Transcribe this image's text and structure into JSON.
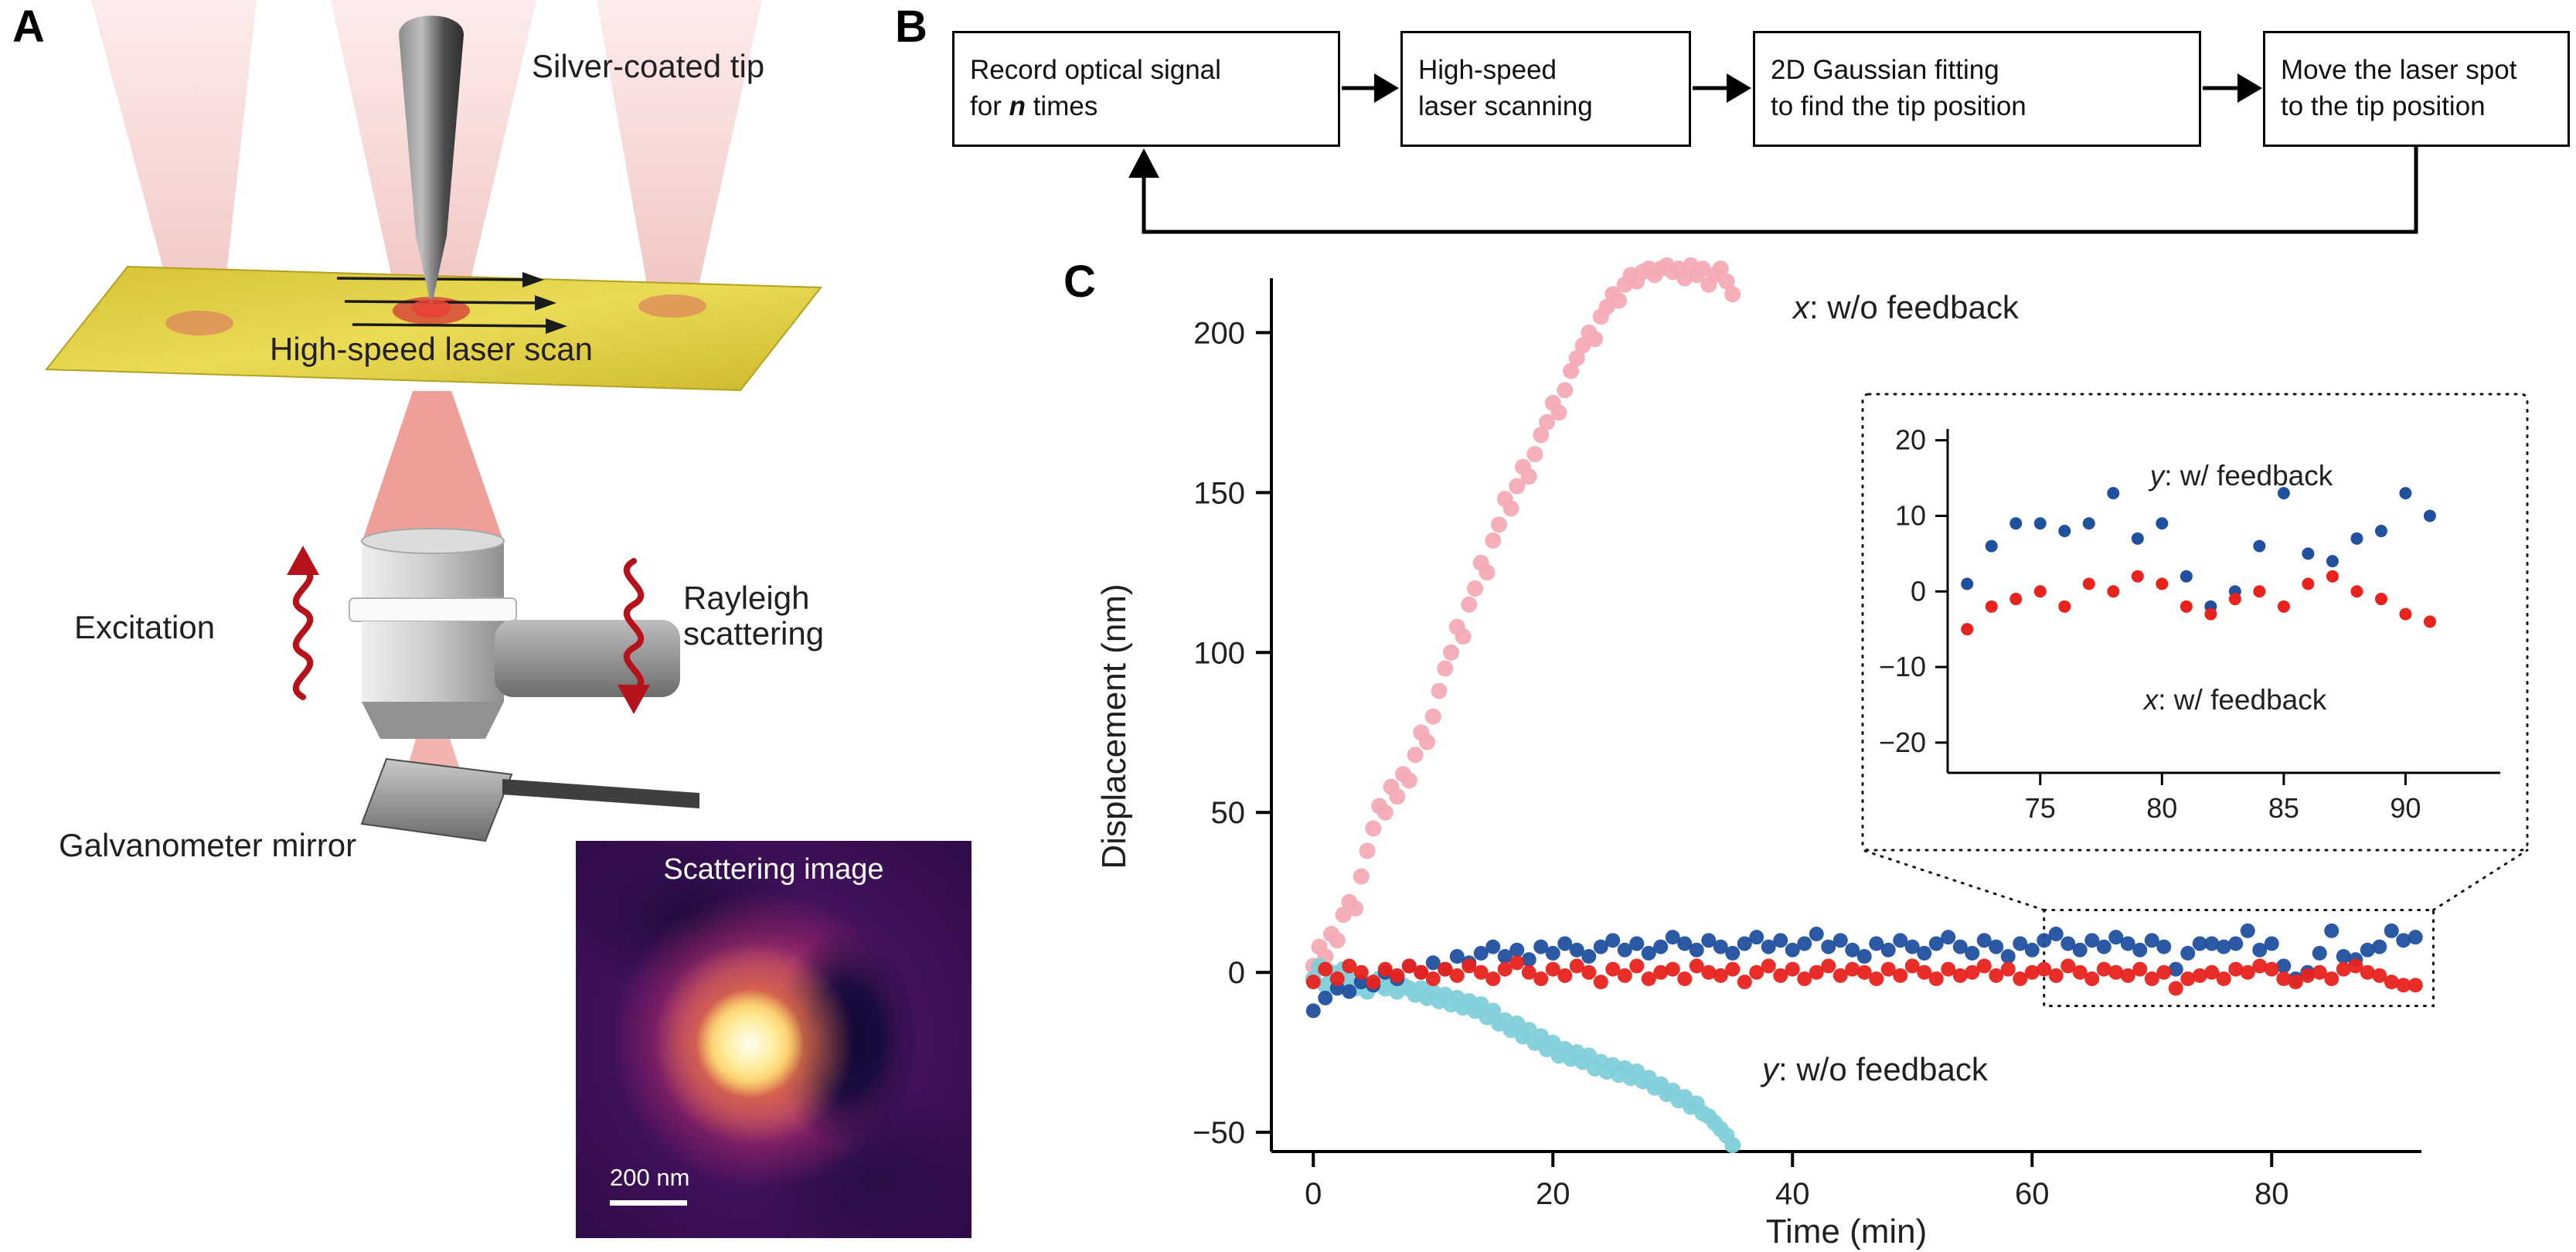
{
  "panels": {
    "a": "A",
    "b": "B",
    "c": "C"
  },
  "panel_a": {
    "tip_label": "Silver-coated tip",
    "scan_label": "High-speed laser scan",
    "excitation_label": "Excitation",
    "rayleigh_line1": "Rayleigh",
    "rayleigh_line2": "scattering",
    "galvo_label": "Galvanometer mirror",
    "scattering_title": "Scattering image",
    "scalebar_label": "200 nm"
  },
  "flowchart": {
    "steps": [
      {
        "line1": "Record optical signal",
        "line2_pre": "for ",
        "line2_emph": "n",
        "line2_post": " times"
      },
      {
        "label": "High-speed\nlaser scanning"
      },
      {
        "label": "2D Gaussian fitting\nto find the tip position"
      },
      {
        "label": "Move the laser spot\nto the tip position"
      }
    ]
  },
  "chart_data": {
    "type": "scatter",
    "xlabel": "Time (min)",
    "ylabel": "Displacement (nm)",
    "xlim": [
      -3.5,
      92.5
    ],
    "ylim": [
      -56,
      217
    ],
    "x_ticks": [
      0,
      20,
      40,
      60,
      80
    ],
    "y_ticks": [
      200,
      150,
      100,
      50,
      0,
      -50
    ],
    "grid": false,
    "labels": {
      "x_wo": {
        "var": "x",
        "rest": ": w/o feedback"
      },
      "y_wo": {
        "var": "y",
        "rest": ": w/o feedback"
      },
      "y_w": {
        "var": "y",
        "rest": ": w/ feedback"
      },
      "x_w": {
        "var": "x",
        "rest": ": w/ feedback"
      }
    },
    "zoom_rect": {
      "t_min": 61,
      "t_max": 93.5,
      "v_min": -10.5,
      "v_max": 19.5
    },
    "inset": {
      "xlim": [
        71.2,
        95
      ],
      "ylim": [
        -24,
        21.5
      ],
      "x_ticks": [
        75,
        80,
        85,
        90
      ],
      "y_ticks": [
        20,
        10,
        0,
        -10,
        -20
      ],
      "t_range": [
        72,
        91
      ],
      "series_shown": [
        "x: w/ feedback",
        "y: w/ feedback"
      ]
    },
    "series": [
      {
        "name": "x: w/o feedback",
        "color": "#f4abb4",
        "t_start": 0,
        "t_step": 0.5,
        "values": [
          2,
          8,
          5,
          12,
          10,
          18,
          22,
          20,
          30,
          38,
          45,
          52,
          50,
          58,
          55,
          62,
          60,
          68,
          75,
          72,
          80,
          88,
          95,
          100,
          108,
          105,
          115,
          120,
          128,
          125,
          135,
          140,
          148,
          145,
          152,
          158,
          155,
          162,
          168,
          172,
          178,
          175,
          182,
          188,
          192,
          196,
          200,
          198,
          205,
          208,
          212,
          210,
          215,
          218,
          216,
          219,
          220,
          218,
          220,
          221,
          219,
          220,
          217,
          221,
          218,
          220,
          215,
          218,
          220,
          216,
          212
        ]
      },
      {
        "name": "y: w/o feedback",
        "color": "#7fcfda",
        "t_start": 0,
        "t_step": 0.5,
        "values": [
          -2,
          2,
          -4,
          0,
          -3,
          1,
          -2,
          -5,
          -3,
          -6,
          -4,
          -2,
          -5,
          -3,
          -6,
          -4,
          -5,
          -7,
          -5,
          -8,
          -6,
          -9,
          -7,
          -10,
          -8,
          -11,
          -9,
          -12,
          -10,
          -14,
          -12,
          -16,
          -15,
          -18,
          -16,
          -20,
          -18,
          -22,
          -20,
          -24,
          -22,
          -26,
          -24,
          -27,
          -25,
          -28,
          -26,
          -30,
          -28,
          -31,
          -29,
          -32,
          -30,
          -33,
          -31,
          -34,
          -33,
          -36,
          -35,
          -38,
          -37,
          -40,
          -39,
          -42,
          -41,
          -44,
          -45,
          -47,
          -49,
          -51,
          -54
        ]
      },
      {
        "name": "y: w/ feedback",
        "color": "#20509e",
        "t_start": 0,
        "t_step": 1,
        "values": [
          -12,
          -8,
          -5,
          -6,
          -3,
          -4,
          0,
          -2,
          2,
          0,
          3,
          1,
          5,
          3,
          6,
          8,
          5,
          7,
          4,
          8,
          6,
          9,
          7,
          5,
          8,
          10,
          7,
          9,
          6,
          8,
          11,
          9,
          7,
          10,
          8,
          6,
          9,
          11,
          8,
          10,
          7,
          9,
          12,
          8,
          10,
          7,
          5,
          9,
          7,
          10,
          8,
          6,
          9,
          11,
          8,
          6,
          10,
          8,
          5,
          9,
          7,
          10,
          12,
          9,
          7,
          10,
          8,
          11,
          9,
          7,
          10,
          8,
          1,
          6,
          9,
          9,
          8,
          9,
          13,
          7,
          9,
          2,
          -2,
          0,
          6,
          13,
          5,
          4,
          7,
          8,
          13,
          10,
          11
        ]
      },
      {
        "name": "x: w/ feedback",
        "color": "#e8231d",
        "t_start": 0,
        "t_step": 1,
        "values": [
          -3,
          1,
          -2,
          2,
          0,
          -3,
          1,
          -1,
          2,
          0,
          -2,
          1,
          -1,
          2,
          0,
          -2,
          1,
          3,
          0,
          -2,
          1,
          -1,
          2,
          0,
          -3,
          1,
          -1,
          2,
          -2,
          0,
          1,
          -2,
          2,
          0,
          -1,
          1,
          -3,
          0,
          2,
          -1,
          1,
          -2,
          0,
          2,
          -1,
          1,
          0,
          -2,
          1,
          -1,
          2,
          0,
          -2,
          1,
          -1,
          0,
          2,
          -1,
          1,
          -2,
          0,
          1,
          -1,
          2,
          0,
          -2,
          1,
          0,
          -1,
          1,
          -2,
          0,
          -5,
          -2,
          -1,
          0,
          -2,
          1,
          0,
          2,
          1,
          -2,
          -3,
          -1,
          0,
          -2,
          1,
          2,
          0,
          -1,
          -3,
          -4,
          -4
        ]
      }
    ]
  }
}
